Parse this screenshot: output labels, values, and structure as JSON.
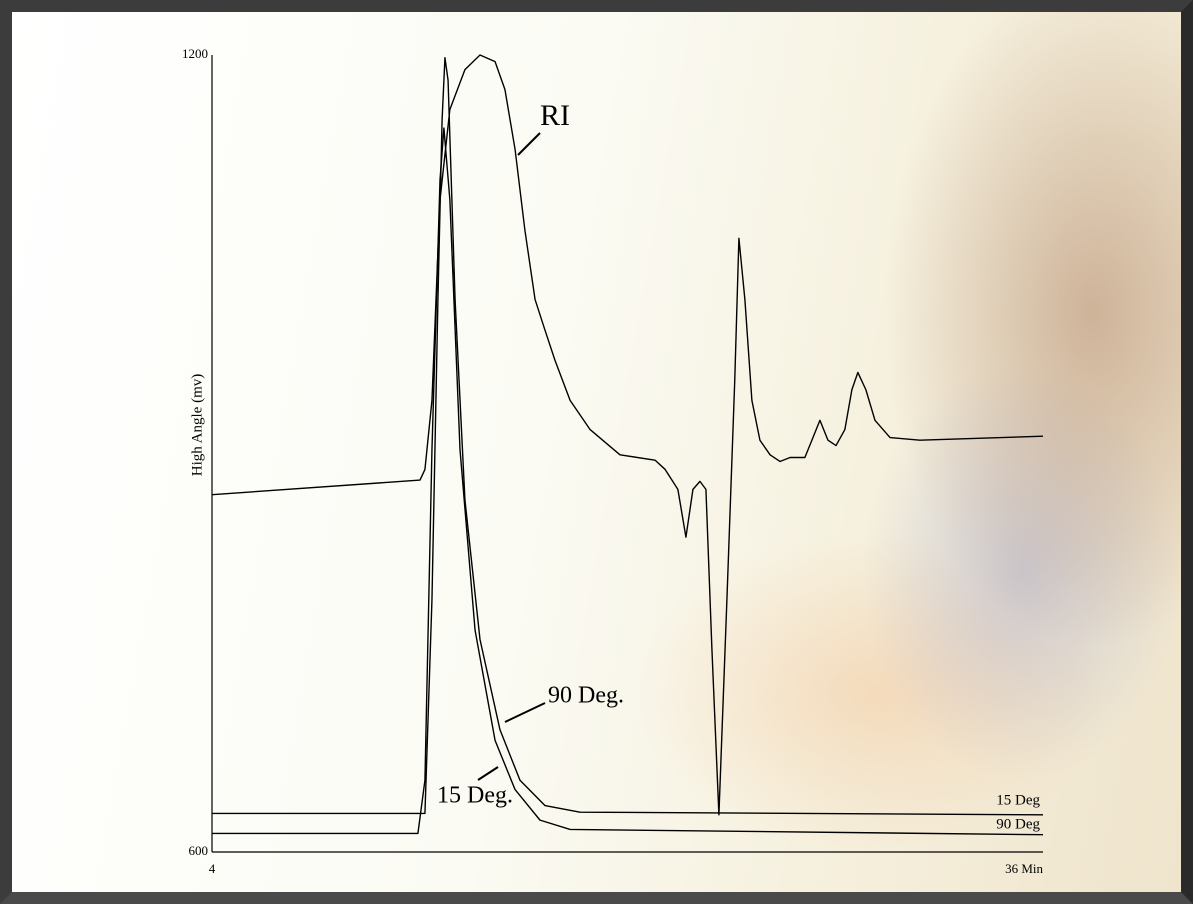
{
  "chart_data": {
    "type": "line",
    "y_label": "High Angle (mv)",
    "xlim": [
      4,
      36
    ],
    "ylim": [
      600,
      1200
    ],
    "xticks": [
      4,
      {
        "value": 36,
        "label": "36 Min"
      }
    ],
    "yticks": [
      600,
      1200
    ],
    "grid": false,
    "annotations": [
      "90 Deg.",
      "15 Deg."
    ],
    "series": [
      {
        "name": "RI",
        "color": "#000000",
        "x": [
          4.0,
          12.01,
          12.2,
          12.47,
          12.78,
          13.16,
          13.74,
          14.32,
          14.9,
          15.28,
          15.67,
          16.05,
          16.44,
          16.82,
          17.21,
          17.79,
          18.56,
          19.71,
          21.06,
          21.45,
          21.94,
          22.25,
          22.52,
          22.79,
          23.02,
          23.25,
          23.52,
          23.83,
          24.13,
          24.29,
          24.52,
          24.79,
          25.1,
          25.49,
          25.87,
          26.26,
          26.83,
          27.1,
          27.41,
          27.72,
          28.03,
          28.37,
          28.64,
          28.87,
          29.18,
          29.53,
          30.11,
          31.26,
          36.0
        ],
        "values": [
          869,
          880,
          888,
          940,
          1091,
          1159,
          1189,
          1200,
          1195,
          1174,
          1129,
          1068,
          1016,
          993,
          970,
          940,
          918,
          899,
          895,
          888,
          873,
          837,
          873,
          879,
          873,
          753,
          628,
          791,
          955,
          1062,
          1016,
          940,
          910,
          899,
          894,
          897,
          897,
          910,
          925,
          910,
          906,
          918,
          948,
          961,
          948,
          925,
          912,
          910,
          913
        ]
      },
      {
        "name": "15 Deg",
        "color": "#000000",
        "x": [
          4.0,
          12.2,
          12.47,
          12.7,
          12.86,
          12.97,
          13.09,
          13.36,
          13.74,
          14.32,
          15.09,
          15.86,
          16.82,
          18.17,
          36.0
        ],
        "values": [
          629,
          629,
          790,
          1016,
          1151,
          1198,
          1181,
          1016,
          865,
          760,
          692,
          654,
          635,
          630,
          628
        ]
      },
      {
        "name": "90 Deg",
        "color": "#000000",
        "x": [
          4.0,
          11.93,
          12.2,
          12.47,
          12.78,
          12.93,
          13.16,
          13.55,
          14.13,
          14.9,
          15.67,
          16.63,
          17.79,
          36.0
        ],
        "values": [
          614,
          614,
          654,
          903,
          1106,
          1145,
          1091,
          903,
          767,
          684,
          647,
          624,
          617,
          613
        ]
      }
    ]
  }
}
